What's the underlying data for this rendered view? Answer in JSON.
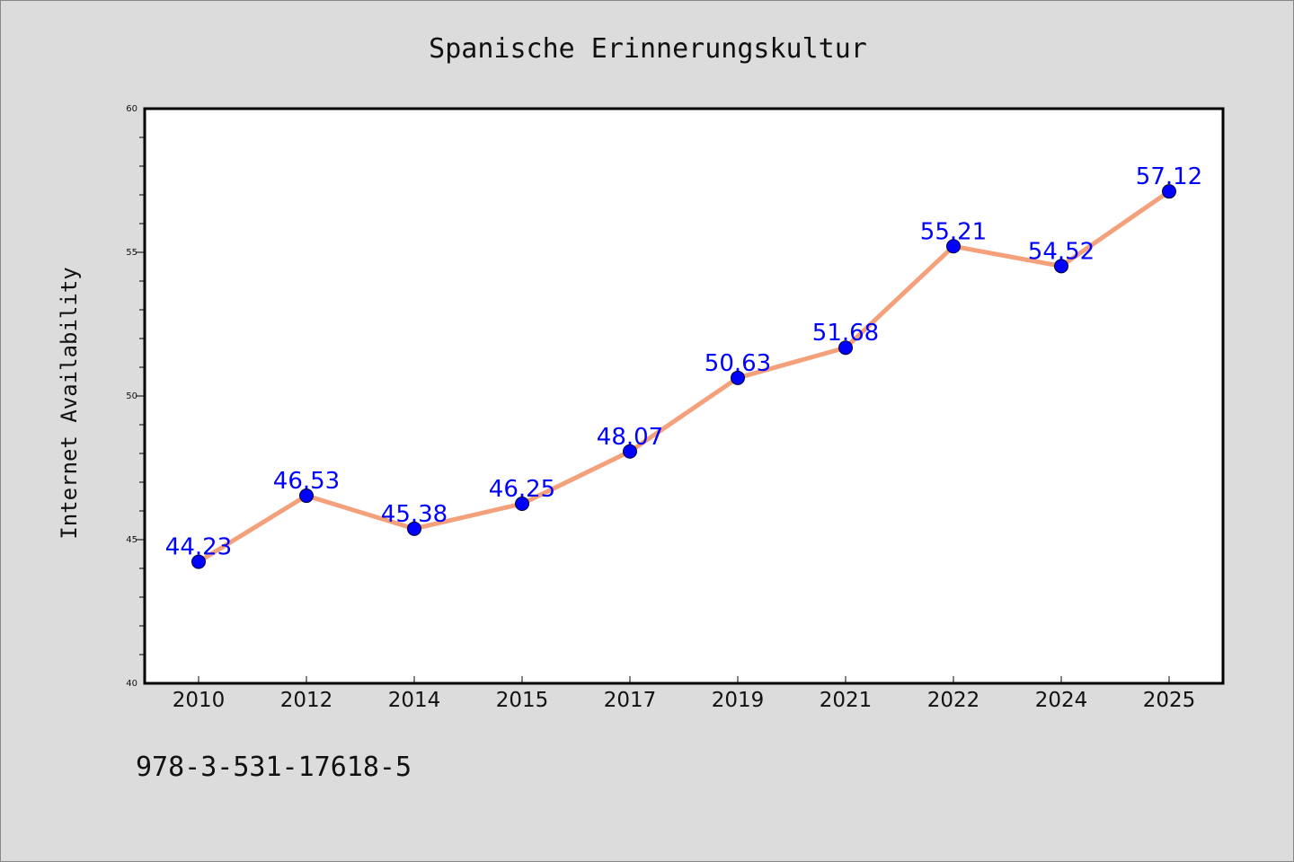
{
  "chart_data": {
    "type": "line",
    "title": "Spanische Erinnerungskultur",
    "xlabel": "",
    "ylabel": "Internet Availability",
    "categories": [
      "2010",
      "2012",
      "2014",
      "2015",
      "2017",
      "2019",
      "2021",
      "2022",
      "2024",
      "2025"
    ],
    "series": [
      {
        "values": [
          44.23,
          46.53,
          45.38,
          46.25,
          48.07,
          50.63,
          51.68,
          55.21,
          54.52,
          57.12
        ],
        "data_labels": [
          "44.23",
          "46.53",
          "45.38",
          "46.25",
          "48.07",
          "50.63",
          "51.68",
          "55.21",
          "54.52",
          "57.12"
        ],
        "line_color": "#f4a07a",
        "marker_color": "#0000ff"
      }
    ],
    "ylim": [
      40,
      60
    ],
    "yticks": [
      "40",
      "45",
      "50",
      "55",
      "60"
    ],
    "grid": false,
    "legend": "none"
  },
  "footer": {
    "isbn": "978-3-531-17618-5"
  },
  "colors": {
    "background": "#dcdcdc",
    "plot_background": "#ffffff",
    "line": "#f4a07a",
    "marker": "#0000ff",
    "data_label": "#0000ff"
  }
}
